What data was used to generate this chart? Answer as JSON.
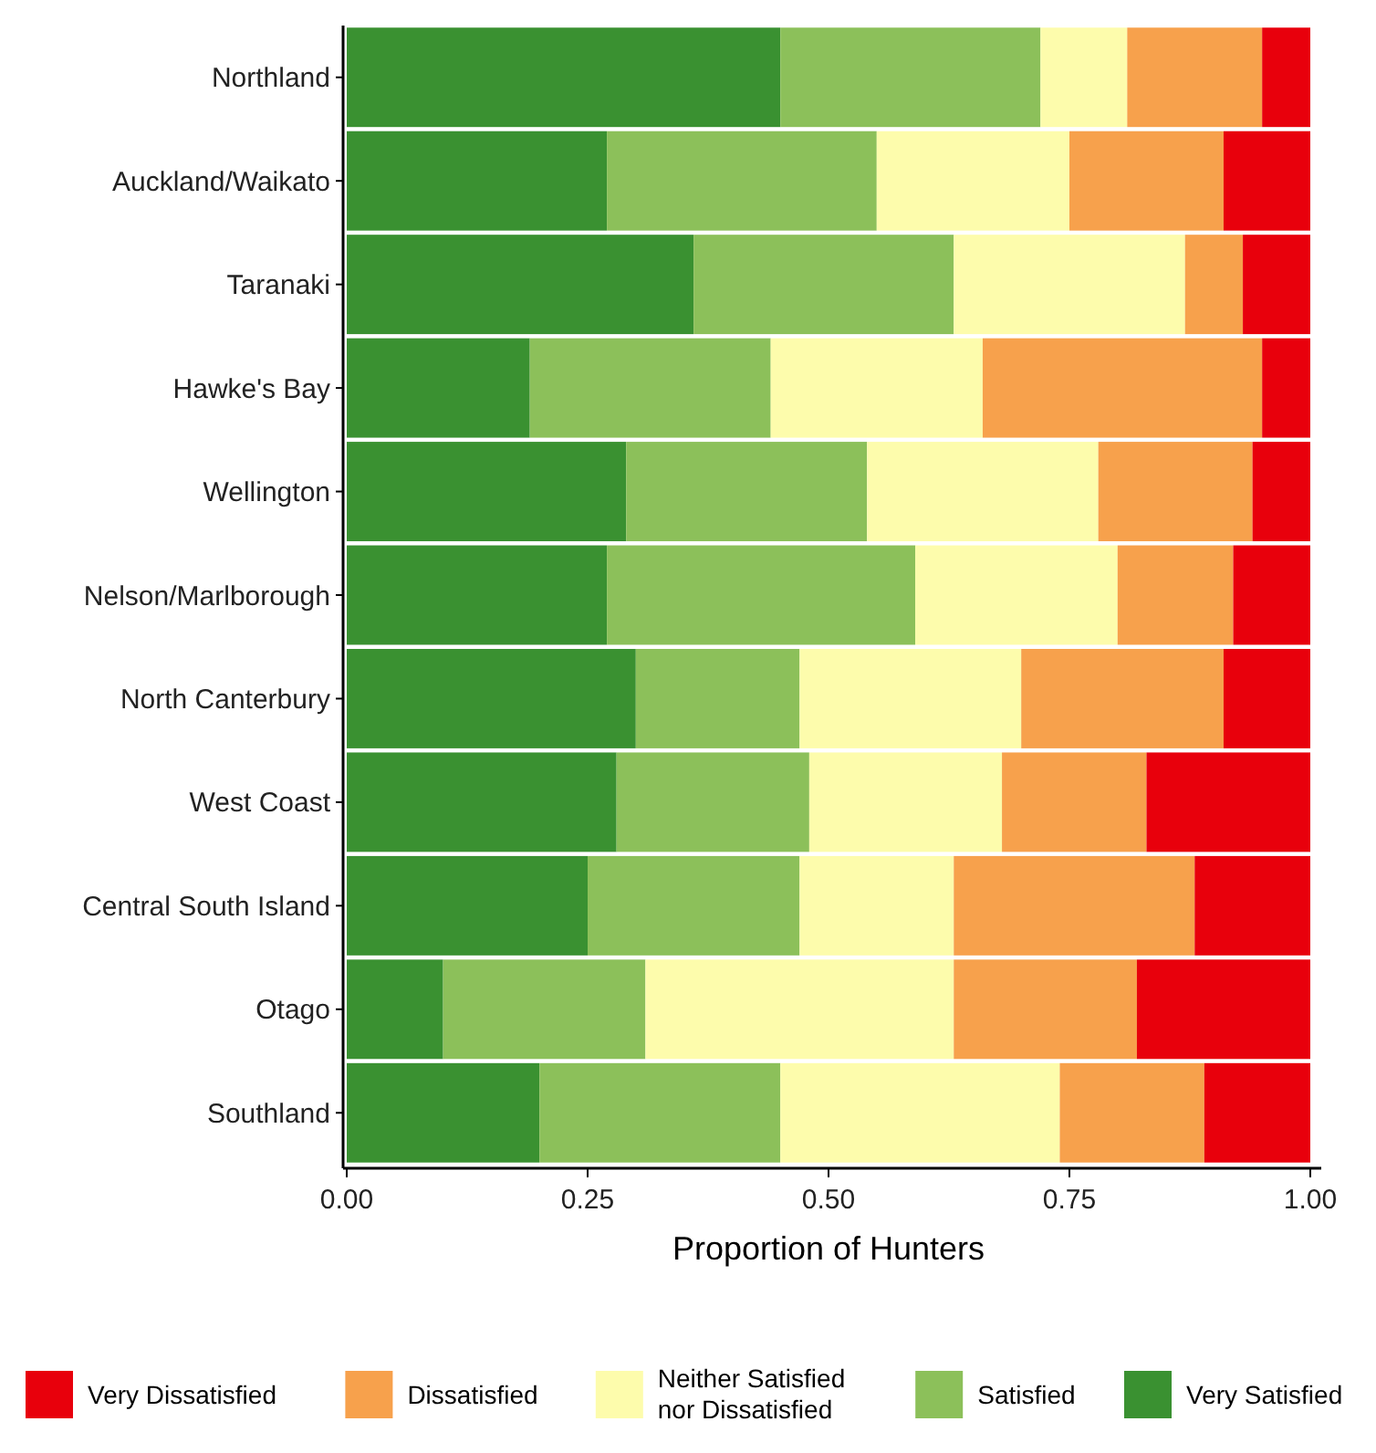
{
  "chart_data": {
    "type": "bar",
    "orientation": "horizontal",
    "stacked": true,
    "xlabel": "Proportion of Hunters",
    "categories": [
      "Northland",
      "Auckland/Waikato",
      "Taranaki",
      "Hawke's Bay",
      "Wellington",
      "Nelson/Marlborough",
      "North Canterbury",
      "West Coast",
      "Central South Island",
      "Otago",
      "Southland"
    ],
    "series": [
      {
        "name": "Very Satisfied",
        "color": "#3a9131",
        "values": [
          0.45,
          0.27,
          0.36,
          0.19,
          0.29,
          0.27,
          0.3,
          0.28,
          0.25,
          0.1,
          0.2
        ]
      },
      {
        "name": "Satisfied",
        "color": "#8cc05a",
        "values": [
          0.27,
          0.28,
          0.27,
          0.25,
          0.25,
          0.32,
          0.17,
          0.2,
          0.22,
          0.21,
          0.25
        ]
      },
      {
        "name": "Neither Satisfied nor Dissatisfied",
        "color": "#fdfcac",
        "values": [
          0.09,
          0.2,
          0.24,
          0.22,
          0.24,
          0.21,
          0.23,
          0.2,
          0.16,
          0.32,
          0.29
        ]
      },
      {
        "name": "Dissatisfied",
        "color": "#f7a14c",
        "values": [
          0.14,
          0.16,
          0.06,
          0.29,
          0.16,
          0.12,
          0.21,
          0.15,
          0.25,
          0.19,
          0.15
        ]
      },
      {
        "name": "Very Dissatisfied",
        "color": "#e8000c",
        "values": [
          0.05,
          0.09,
          0.07,
          0.05,
          0.06,
          0.08,
          0.09,
          0.17,
          0.12,
          0.18,
          0.11
        ]
      }
    ],
    "xlim": [
      0,
      1
    ],
    "xticks": [
      {
        "value": 0,
        "label": "0.00"
      },
      {
        "value": 0.25,
        "label": "0.25"
      },
      {
        "value": 0.5,
        "label": "0.50"
      },
      {
        "value": 0.75,
        "label": "0.75"
      },
      {
        "value": 1,
        "label": "1.00"
      }
    ],
    "grid": false,
    "legend": "bottom"
  }
}
